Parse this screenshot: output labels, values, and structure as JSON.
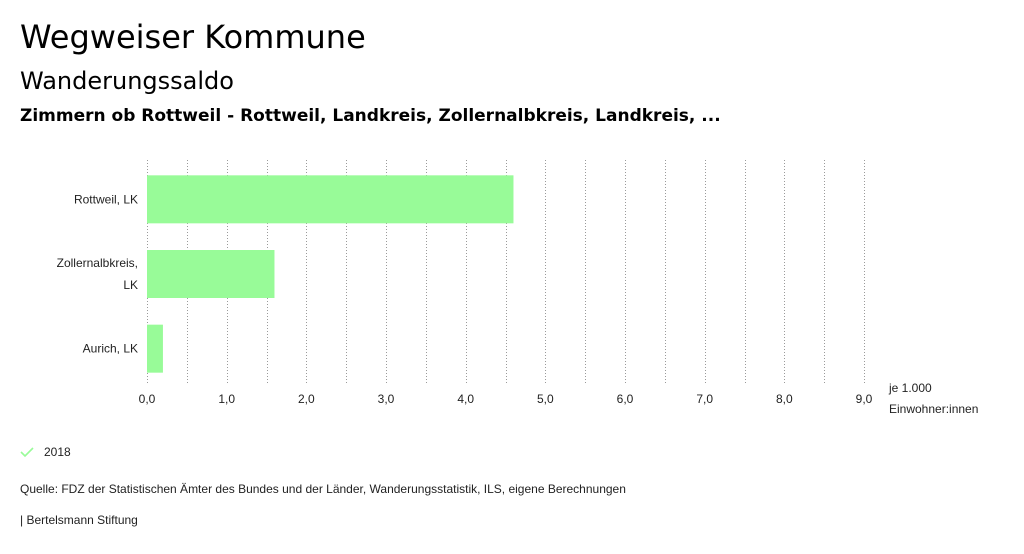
{
  "header": {
    "title": "Wegweiser Kommune",
    "subtitle": "Wanderungssaldo",
    "region": "Zimmern ob Rottweil - Rottweil, Landkreis, Zollernalbkreis, Landkreis, ..."
  },
  "chart_data": {
    "type": "bar",
    "orientation": "horizontal",
    "categories": [
      [
        "Rottweil, LK"
      ],
      [
        "Zollernalbkreis,",
        "LK"
      ],
      [
        "Aurich, LK"
      ]
    ],
    "series": [
      {
        "name": "2018",
        "values": [
          4.6,
          1.6,
          0.2
        ],
        "color": "#98fb98"
      }
    ],
    "xlim": [
      0,
      9
    ],
    "xticks": [
      "0,0",
      "1,0",
      "2,0",
      "3,0",
      "4,0",
      "5,0",
      "6,0",
      "7,0",
      "8,0",
      "9,0"
    ],
    "unit_label": [
      "je 1.000",
      "Einwohner:innen"
    ],
    "grid": true,
    "legend": "bottom-left"
  },
  "legend": {
    "label": "2018",
    "color": "#98fb98"
  },
  "footer": {
    "source": "Quelle: FDZ der Statistischen Ämter des Bundes und der Länder, Wanderungsstatistik, ILS, eigene Berechnungen",
    "copyright": "| Bertelsmann Stiftung"
  }
}
